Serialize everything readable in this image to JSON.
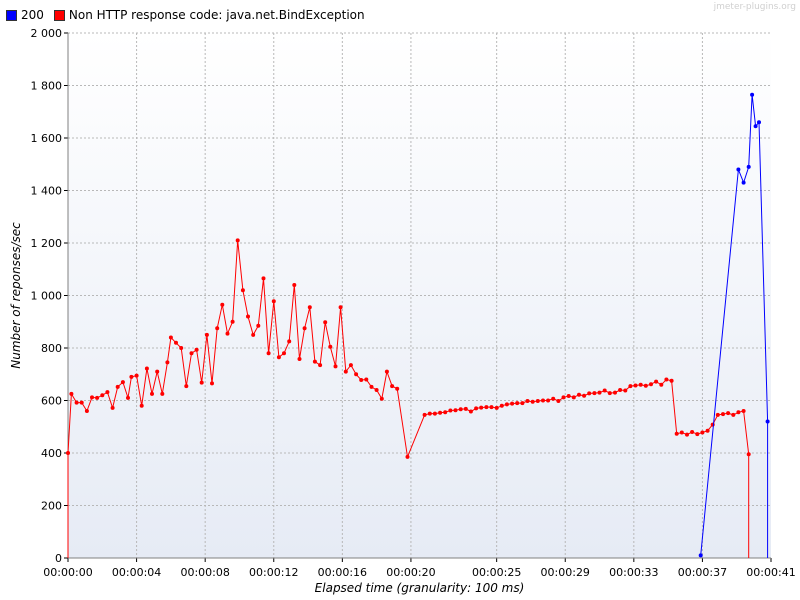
{
  "watermark": "jmeter-plugins.org",
  "legend": [
    {
      "name": "200",
      "color": "#0000ff"
    },
    {
      "name": "Non HTTP response code: java.net.BindException",
      "color": "#ff0000"
    }
  ],
  "chart_data": {
    "type": "line",
    "title": "",
    "xlabel": "Elapsed time (granularity: 100 ms)",
    "ylabel": "Number of reponses/sec",
    "ylim": [
      0,
      2000
    ],
    "yticks": [
      0,
      200,
      400,
      600,
      800,
      1000,
      1200,
      1400,
      1600,
      1800,
      2000
    ],
    "ytick_labels": [
      "0",
      "200",
      "400",
      "600",
      "800",
      "1 000",
      "1 200",
      "1 400",
      "1 600",
      "1 800",
      "2 000"
    ],
    "xlim_seconds": [
      0,
      41
    ],
    "xticks_seconds": [
      0,
      4,
      8,
      12,
      16,
      20,
      25,
      29,
      33,
      37,
      41
    ],
    "xtick_labels": [
      "00:00:00",
      "00:00:04",
      "00:00:08",
      "00:00:12",
      "00:00:16",
      "00:00:20",
      "00:00:25",
      "00:00:29",
      "00:00:33",
      "00:00:37",
      "00:00:41"
    ],
    "grid": true,
    "legend_position": "top-left",
    "x_units": "seconds elapsed",
    "series": [
      {
        "name": "200",
        "color": "#0000ff",
        "points": [
          [
            36.9,
            10
          ],
          [
            39.1,
            1480
          ],
          [
            39.4,
            1430
          ],
          [
            39.7,
            1490
          ],
          [
            39.9,
            1765
          ],
          [
            40.1,
            1645
          ],
          [
            40.3,
            1660
          ],
          [
            40.8,
            520
          ],
          [
            40.8,
            0
          ]
        ]
      },
      {
        "name": "Non HTTP response code: java.net.BindException",
        "color": "#ff0000",
        "points": [
          [
            0.0,
            0
          ],
          [
            0.0,
            400
          ],
          [
            0.2,
            625
          ],
          [
            0.5,
            592
          ],
          [
            0.8,
            592
          ],
          [
            1.1,
            560
          ],
          [
            1.4,
            612
          ],
          [
            1.7,
            610
          ],
          [
            2.0,
            620
          ],
          [
            2.3,
            632
          ],
          [
            2.6,
            572
          ],
          [
            2.9,
            652
          ],
          [
            3.2,
            670
          ],
          [
            3.5,
            610
          ],
          [
            3.7,
            690
          ],
          [
            4.0,
            695
          ],
          [
            4.3,
            580
          ],
          [
            4.6,
            722
          ],
          [
            4.9,
            625
          ],
          [
            5.2,
            710
          ],
          [
            5.5,
            625
          ],
          [
            5.8,
            745
          ],
          [
            6.0,
            840
          ],
          [
            6.3,
            820
          ],
          [
            6.6,
            800
          ],
          [
            6.9,
            655
          ],
          [
            7.2,
            780
          ],
          [
            7.5,
            793
          ],
          [
            7.8,
            668
          ],
          [
            8.1,
            850
          ],
          [
            8.4,
            665
          ],
          [
            8.7,
            875
          ],
          [
            9.0,
            965
          ],
          [
            9.3,
            855
          ],
          [
            9.6,
            900
          ],
          [
            9.9,
            1210
          ],
          [
            10.2,
            1020
          ],
          [
            10.5,
            920
          ],
          [
            10.8,
            850
          ],
          [
            11.1,
            885
          ],
          [
            11.4,
            1065
          ],
          [
            11.7,
            780
          ],
          [
            12.0,
            978
          ],
          [
            12.3,
            765
          ],
          [
            12.6,
            780
          ],
          [
            12.9,
            825
          ],
          [
            13.2,
            1040
          ],
          [
            13.5,
            758
          ],
          [
            13.8,
            875
          ],
          [
            14.1,
            955
          ],
          [
            14.4,
            748
          ],
          [
            14.7,
            735
          ],
          [
            15.0,
            898
          ],
          [
            15.3,
            805
          ],
          [
            15.6,
            730
          ],
          [
            15.9,
            955
          ],
          [
            16.2,
            710
          ],
          [
            16.5,
            735
          ],
          [
            16.8,
            700
          ],
          [
            17.1,
            678
          ],
          [
            17.4,
            680
          ],
          [
            17.7,
            652
          ],
          [
            18.0,
            640
          ],
          [
            18.3,
            607
          ],
          [
            18.6,
            710
          ],
          [
            18.9,
            655
          ],
          [
            19.2,
            645
          ],
          [
            19.8,
            385
          ],
          [
            20.8,
            545
          ],
          [
            21.1,
            550
          ],
          [
            21.4,
            550
          ],
          [
            21.7,
            553
          ],
          [
            22.0,
            555
          ],
          [
            22.3,
            562
          ],
          [
            22.6,
            563
          ],
          [
            22.9,
            567
          ],
          [
            23.2,
            568
          ],
          [
            23.5,
            558
          ],
          [
            23.8,
            570
          ],
          [
            24.1,
            573
          ],
          [
            24.4,
            575
          ],
          [
            24.7,
            575
          ],
          [
            25.0,
            572
          ],
          [
            25.3,
            580
          ],
          [
            25.6,
            585
          ],
          [
            25.9,
            588
          ],
          [
            26.2,
            590
          ],
          [
            26.5,
            590
          ],
          [
            26.8,
            598
          ],
          [
            27.1,
            595
          ],
          [
            27.4,
            598
          ],
          [
            27.7,
            600
          ],
          [
            28.0,
            600
          ],
          [
            28.3,
            607
          ],
          [
            28.6,
            598
          ],
          [
            28.9,
            612
          ],
          [
            29.2,
            617
          ],
          [
            29.5,
            612
          ],
          [
            29.8,
            622
          ],
          [
            30.1,
            618
          ],
          [
            30.4,
            627
          ],
          [
            30.7,
            628
          ],
          [
            31.0,
            630
          ],
          [
            31.3,
            638
          ],
          [
            31.6,
            628
          ],
          [
            31.9,
            630
          ],
          [
            32.2,
            640
          ],
          [
            32.5,
            638
          ],
          [
            32.8,
            655
          ],
          [
            33.1,
            657
          ],
          [
            33.4,
            660
          ],
          [
            33.7,
            656
          ],
          [
            34.0,
            662
          ],
          [
            34.3,
            672
          ],
          [
            34.6,
            660
          ],
          [
            34.9,
            680
          ],
          [
            35.2,
            675
          ],
          [
            35.5,
            473
          ],
          [
            35.8,
            478
          ],
          [
            36.1,
            470
          ],
          [
            36.4,
            480
          ],
          [
            36.7,
            472
          ],
          [
            37.0,
            478
          ],
          [
            37.3,
            485
          ],
          [
            37.6,
            508
          ],
          [
            37.9,
            545
          ],
          [
            38.2,
            548
          ],
          [
            38.5,
            552
          ],
          [
            38.8,
            545
          ],
          [
            39.1,
            555
          ],
          [
            39.4,
            560
          ],
          [
            39.7,
            395
          ],
          [
            39.7,
            0
          ]
        ]
      }
    ]
  }
}
